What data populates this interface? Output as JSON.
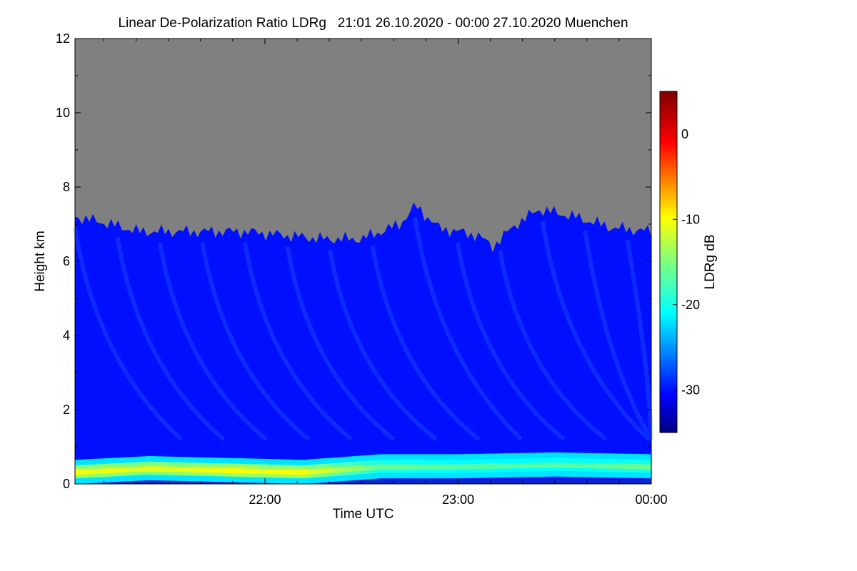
{
  "chart_data": {
    "type": "heatmap",
    "title": "Linear De-Polarization Ratio LDRg   21:01 26.10.2020 - 00:00 27.10.2020 Muenchen",
    "xlabel": "Time UTC",
    "ylabel": "Height km",
    "x_range_hours": [
      21.017,
      24.0
    ],
    "x_ticks": [
      {
        "hour": 22.0,
        "label": "22:00"
      },
      {
        "hour": 23.0,
        "label": "23:00"
      },
      {
        "hour": 24.0,
        "label": "00:00"
      }
    ],
    "ylim": [
      0,
      12
    ],
    "y_ticks": [
      0,
      2,
      4,
      6,
      8,
      10,
      12
    ],
    "colorbar": {
      "label": "LDRg dB",
      "range": [
        -35,
        5
      ],
      "ticks": [
        0,
        -10,
        -20,
        -30
      ],
      "colormap": "jet"
    },
    "no_signal_color": "#808080",
    "signal_top_height_km": [
      {
        "hour": 21.02,
        "h": 7.2
      },
      {
        "hour": 21.2,
        "h": 7.0
      },
      {
        "hour": 21.35,
        "h": 6.8
      },
      {
        "hour": 21.6,
        "h": 6.8
      },
      {
        "hour": 21.9,
        "h": 6.8
      },
      {
        "hour": 22.1,
        "h": 6.7
      },
      {
        "hour": 22.3,
        "h": 6.6
      },
      {
        "hour": 22.5,
        "h": 6.6
      },
      {
        "hour": 22.7,
        "h": 7.0
      },
      {
        "hour": 22.78,
        "h": 7.5
      },
      {
        "hour": 22.9,
        "h": 6.9
      },
      {
        "hour": 23.1,
        "h": 6.7
      },
      {
        "hour": 23.18,
        "h": 6.4
      },
      {
        "hour": 23.3,
        "h": 7.0
      },
      {
        "hour": 23.42,
        "h": 7.4
      },
      {
        "hour": 23.6,
        "h": 7.2
      },
      {
        "hour": 23.8,
        "h": 6.9
      },
      {
        "hour": 24.0,
        "h": 6.8
      }
    ],
    "boundary_layer_height_km": [
      {
        "hour": 21.02,
        "h": 0.3,
        "ldr_db": -10
      },
      {
        "hour": 21.4,
        "h": 0.4,
        "ldr_db": -11
      },
      {
        "hour": 21.8,
        "h": 0.35,
        "ldr_db": -10
      },
      {
        "hour": 22.2,
        "h": 0.3,
        "ldr_db": -10
      },
      {
        "hour": 22.6,
        "h": 0.45,
        "ldr_db": -16
      },
      {
        "hour": 23.0,
        "h": 0.45,
        "ldr_db": -17
      },
      {
        "hour": 23.5,
        "h": 0.5,
        "ldr_db": -17
      },
      {
        "hour": 24.0,
        "h": 0.45,
        "ldr_db": -16
      }
    ],
    "aloft_ldr_db": -30
  }
}
